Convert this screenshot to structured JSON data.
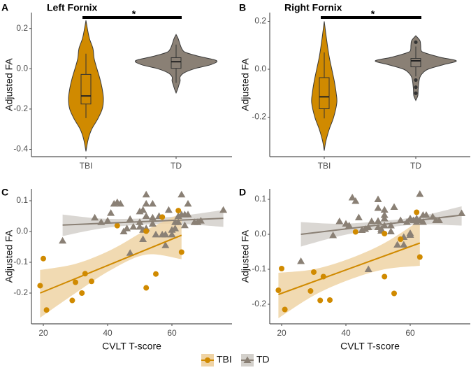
{
  "colors": {
    "TBI": "#D08A00",
    "TD": "#8A8075",
    "TBI_ribbon": "#EFD3A4",
    "TD_ribbon": "#D3D0CB",
    "outline": "#3a3a3a"
  },
  "legend": {
    "items": [
      {
        "label": "TBI"
      },
      {
        "label": "TD"
      }
    ],
    "placement": "bottom"
  },
  "chart_data": [
    {
      "panel": "A",
      "type": "violin",
      "title": "Left Fornix",
      "xlabel": "",
      "ylabel": "Adjusted FA",
      "ylim": [
        -0.41,
        0.25
      ],
      "yticks": [
        {
          "v": 0.2,
          "label": "0.2"
        },
        {
          "v": 0.0,
          "label": "0.0"
        },
        {
          "v": -0.2,
          "label": "-0.2"
        },
        {
          "v": -0.4,
          "label": "-0.4"
        }
      ],
      "categories": [
        "TBI",
        "TD"
      ],
      "significance": {
        "from": "TBI",
        "to": "TD",
        "label": "*"
      },
      "groups": [
        {
          "name": "TBI",
          "density": [
            [
              0.24,
              0
            ],
            [
              0.2,
              0.08
            ],
            [
              0.15,
              0.2
            ],
            [
              0.1,
              0.4
            ],
            [
              0.05,
              0.47
            ],
            [
              0.0,
              0.63
            ],
            [
              -0.05,
              0.8
            ],
            [
              -0.1,
              0.93
            ],
            [
              -0.15,
              1
            ],
            [
              -0.2,
              0.93
            ],
            [
              -0.25,
              0.67
            ],
            [
              -0.3,
              0.33
            ],
            [
              -0.35,
              0.13
            ],
            [
              -0.41,
              0
            ]
          ],
          "box": {
            "lower_whisker": -0.245,
            "q1": -0.175,
            "median": -0.135,
            "q3": -0.028,
            "upper_whisker": 0.075
          },
          "outliers": []
        },
        {
          "name": "TD",
          "density": [
            [
              0.17,
              0
            ],
            [
              0.15,
              0.05
            ],
            [
              0.1,
              0.14
            ],
            [
              0.08,
              0.25
            ],
            [
              0.06,
              0.6
            ],
            [
              0.04,
              1
            ],
            [
              0.02,
              0.85
            ],
            [
              0.0,
              0.45
            ],
            [
              -0.02,
              0.2
            ],
            [
              -0.04,
              0.1
            ],
            [
              -0.06,
              0.1
            ],
            [
              -0.08,
              0.07
            ],
            [
              -0.1,
              0.04
            ],
            [
              -0.12,
              0
            ]
          ],
          "box": {
            "lower_whisker": -0.07,
            "q1": 0.002,
            "median": 0.035,
            "q3": 0.055,
            "upper_whisker": 0.12
          },
          "outliers": []
        }
      ]
    },
    {
      "panel": "B",
      "type": "violin",
      "title": "Right Fornix",
      "xlabel": "",
      "ylabel": "Adjusted FA",
      "ylim": [
        -0.34,
        0.21
      ],
      "yticks": [
        {
          "v": 0.2,
          "label": "0.2"
        },
        {
          "v": 0.0,
          "label": "0.0"
        },
        {
          "v": -0.2,
          "label": "-0.2"
        }
      ],
      "categories": [
        "TBI",
        "TD"
      ],
      "significance": {
        "from": "TBI",
        "to": "TD",
        "label": "*"
      },
      "groups": [
        {
          "name": "TBI",
          "density": [
            [
              0.2,
              0
            ],
            [
              0.15,
              0.12
            ],
            [
              0.1,
              0.25
            ],
            [
              0.05,
              0.4
            ],
            [
              0.0,
              0.6
            ],
            [
              -0.05,
              0.8
            ],
            [
              -0.1,
              0.95
            ],
            [
              -0.14,
              1
            ],
            [
              -0.2,
              0.75
            ],
            [
              -0.25,
              0.4
            ],
            [
              -0.3,
              0.13
            ],
            [
              -0.34,
              0
            ]
          ],
          "box": {
            "lower_whisker": -0.205,
            "q1": -0.165,
            "median": -0.115,
            "q3": -0.035,
            "upper_whisker": 0.07
          },
          "outliers": []
        },
        {
          "name": "TD",
          "density": [
            [
              0.14,
              0
            ],
            [
              0.12,
              0.1
            ],
            [
              0.1,
              0.12
            ],
            [
              0.08,
              0.13
            ],
            [
              0.07,
              0.2
            ],
            [
              0.05,
              0.6
            ],
            [
              0.035,
              1
            ],
            [
              0.02,
              0.7
            ],
            [
              0.0,
              0.3
            ],
            [
              -0.02,
              0.15
            ],
            [
              -0.04,
              0.09
            ],
            [
              -0.08,
              0.06
            ],
            [
              -0.11,
              0.05
            ],
            [
              -0.13,
              0
            ]
          ],
          "box": {
            "lower_whisker": -0.03,
            "q1": 0.01,
            "median": 0.035,
            "q3": 0.045,
            "upper_whisker": 0.095
          },
          "outliers": [
            0.113,
            -0.045,
            -0.075,
            -0.1
          ]
        }
      ]
    },
    {
      "panel": "C",
      "type": "scatter",
      "title": "",
      "xlabel": "CVLT T-score",
      "ylabel": "Adjusted FA",
      "xlim": [
        15,
        78
      ],
      "ylim": [
        -0.3,
        0.13
      ],
      "xticks": [
        {
          "v": 20,
          "label": "20"
        },
        {
          "v": 40,
          "label": "40"
        },
        {
          "v": 60,
          "label": "60"
        }
      ],
      "yticks": [
        {
          "v": 0.1,
          "label": "0.1"
        },
        {
          "v": 0.0,
          "label": "0.0"
        },
        {
          "v": -0.1,
          "label": "-0.1"
        },
        {
          "v": -0.2,
          "label": "-0.2"
        }
      ],
      "series": [
        {
          "name": "TD",
          "marker": "triangle",
          "points": [
            [
              26,
              -0.03
            ],
            [
              36,
              0.045
            ],
            [
              38,
              0.03
            ],
            [
              40,
              0.035
            ],
            [
              41,
              0.06
            ],
            [
              42,
              0.09
            ],
            [
              43,
              0.095
            ],
            [
              44,
              0.09
            ],
            [
              45,
              0.0
            ],
            [
              46,
              0.01
            ],
            [
              47,
              0.04
            ],
            [
              47,
              -0.07
            ],
            [
              48,
              0.015
            ],
            [
              50,
              0.065
            ],
            [
              50,
              0.03
            ],
            [
              50,
              0.015
            ],
            [
              51,
              0.07
            ],
            [
              51,
              0.005
            ],
            [
              51,
              -0.025
            ],
            [
              52,
              0.12
            ],
            [
              52,
              0.09
            ],
            [
              52,
              0.05
            ],
            [
              52,
              0.01
            ],
            [
              54,
              0.09
            ],
            [
              54,
              0.045
            ],
            [
              54,
              0.025
            ],
            [
              55,
              -0.01
            ],
            [
              56,
              0.05
            ],
            [
              57,
              -0.01
            ],
            [
              58,
              -0.045
            ],
            [
              58,
              -0.01
            ],
            [
              59,
              0.07
            ],
            [
              60,
              0.005
            ],
            [
              60,
              -0.01
            ],
            [
              61,
              0.03
            ],
            [
              61,
              0.01
            ],
            [
              62,
              0.05
            ],
            [
              62,
              0.03
            ],
            [
              63,
              0.12
            ],
            [
              63,
              0.055
            ],
            [
              64,
              0.055
            ],
            [
              64,
              0.02
            ],
            [
              65,
              0.09
            ],
            [
              65,
              0.055
            ],
            [
              67,
              0.03
            ],
            [
              68,
              0.03
            ],
            [
              69,
              0.035
            ],
            [
              76,
              0.07
            ]
          ],
          "fit": {
            "x": [
              26,
              76
            ],
            "y": [
              0.021,
              0.043
            ]
          },
          "ci": {
            "x": [
              26,
              38,
              50,
              62,
              76
            ],
            "lower": [
              -0.015,
              0.01,
              0.022,
              0.025,
              0.015
            ],
            "upper": [
              0.055,
              0.042,
              0.042,
              0.05,
              0.07
            ]
          }
        },
        {
          "name": "TBI",
          "marker": "circle",
          "points": [
            [
              19,
              -0.176
            ],
            [
              20,
              -0.088
            ],
            [
              21,
              -0.255
            ],
            [
              29,
              -0.224
            ],
            [
              30,
              -0.165
            ],
            [
              32,
              -0.2
            ],
            [
              33,
              -0.137
            ],
            [
              35,
              -0.162
            ],
            [
              43,
              0.019
            ],
            [
              52,
              0.001
            ],
            [
              52,
              -0.183
            ],
            [
              55,
              -0.138
            ],
            [
              57,
              0.047
            ],
            [
              62,
              0.068
            ],
            [
              63,
              -0.067
            ]
          ],
          "fit": {
            "x": [
              19,
              63
            ],
            "y": [
              -0.2,
              -0.012
            ]
          },
          "ci": {
            "x": [
              19,
              30,
              41,
              52,
              63
            ],
            "lower": [
              -0.28,
              -0.2,
              -0.125,
              -0.075,
              -0.09
            ],
            "upper": [
              -0.125,
              -0.105,
              -0.06,
              0.005,
              0.06
            ]
          }
        }
      ]
    },
    {
      "panel": "D",
      "type": "scatter",
      "title": "",
      "xlabel": "CVLT T-score",
      "ylabel": "Adjusted FA",
      "xlim": [
        15,
        78
      ],
      "ylim": [
        -0.25,
        0.12
      ],
      "xticks": [
        {
          "v": 20,
          "label": "20"
        },
        {
          "v": 40,
          "label": "40"
        },
        {
          "v": 60,
          "label": "60"
        }
      ],
      "yticks": [
        {
          "v": 0.1,
          "label": "0.1"
        },
        {
          "v": 0.0,
          "label": "0.0"
        },
        {
          "v": -0.1,
          "label": "-0.1"
        },
        {
          "v": -0.2,
          "label": "-0.2"
        }
      ],
      "series": [
        {
          "name": "TD",
          "marker": "triangle",
          "points": [
            [
              26,
              -0.077
            ],
            [
              36,
              -0.003
            ],
            [
              38,
              0.037
            ],
            [
              40,
              0.03
            ],
            [
              41,
              0.025
            ],
            [
              42,
              0.105
            ],
            [
              43,
              0.095
            ],
            [
              44,
              0.048
            ],
            [
              45,
              0.012
            ],
            [
              46,
              0.015
            ],
            [
              47,
              0.02
            ],
            [
              47,
              -0.1
            ],
            [
              48,
              0.037
            ],
            [
              50,
              0.1
            ],
            [
              50,
              0.075
            ],
            [
              50,
              0.038
            ],
            [
              50,
              0.02
            ],
            [
              51,
              0.01
            ],
            [
              51,
              0.015
            ],
            [
              52,
              0.07
            ],
            [
              52,
              0.055
            ],
            [
              52,
              0.045
            ],
            [
              52,
              0.025
            ],
            [
              54,
              0.025
            ],
            [
              54,
              0.008
            ],
            [
              55,
              0.078
            ],
            [
              56,
              -0.03
            ],
            [
              57,
              0.04
            ],
            [
              58,
              -0.03
            ],
            [
              58,
              -0.008
            ],
            [
              59,
              0.035
            ],
            [
              60,
              0.003
            ],
            [
              60,
              -0.002
            ],
            [
              60,
              0.045
            ],
            [
              61,
              0.04
            ],
            [
              62,
              0.045
            ],
            [
              62,
              0.035
            ],
            [
              63,
              0.115
            ],
            [
              63,
              0.04
            ],
            [
              64,
              0.055
            ],
            [
              64,
              0.035
            ],
            [
              65,
              0.055
            ],
            [
              67,
              0.05
            ],
            [
              68,
              0.04
            ],
            [
              69,
              0.04
            ],
            [
              76,
              0.06
            ]
          ],
          "fit": {
            "x": [
              26,
              76
            ],
            "y": [
              0.0,
              0.055
            ]
          },
          "ci": {
            "x": [
              26,
              38,
              50,
              62,
              76
            ],
            "lower": [
              -0.035,
              -0.005,
              0.015,
              0.028,
              0.025
            ],
            "upper": [
              0.035,
              0.03,
              0.037,
              0.05,
              0.08
            ]
          }
        },
        {
          "name": "TBI",
          "marker": "circle",
          "points": [
            [
              19,
              -0.16
            ],
            [
              20,
              -0.098
            ],
            [
              21,
              -0.215
            ],
            [
              29,
              -0.162
            ],
            [
              30,
              -0.108
            ],
            [
              32,
              -0.189
            ],
            [
              33,
              -0.121
            ],
            [
              35,
              -0.188
            ],
            [
              43,
              0.007
            ],
            [
              52,
              0.002
            ],
            [
              52,
              -0.121
            ],
            [
              55,
              -0.169
            ],
            [
              57,
              -0.014
            ],
            [
              62,
              0.063
            ],
            [
              63,
              -0.065
            ]
          ],
          "fit": {
            "x": [
              19,
              63
            ],
            "y": [
              -0.172,
              -0.025
            ]
          },
          "ci": {
            "x": [
              19,
              30,
              41,
              52,
              63
            ],
            "lower": [
              -0.24,
              -0.175,
              -0.13,
              -0.1,
              -0.09
            ],
            "upper": [
              -0.11,
              -0.1,
              -0.07,
              -0.025,
              0.04
            ]
          }
        }
      ]
    }
  ]
}
